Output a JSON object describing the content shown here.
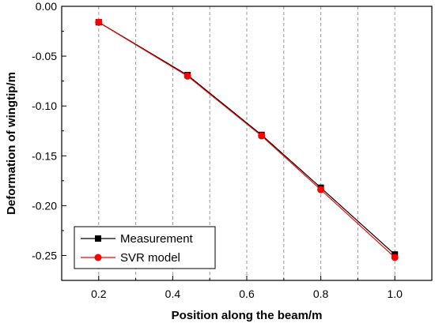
{
  "chart_data": {
    "type": "line",
    "title": "",
    "xlabel": "Position along the beam/m",
    "ylabel": "Deformation of wingtip/m",
    "xlim": [
      0.1,
      1.1
    ],
    "ylim": [
      -0.275,
      0.0
    ],
    "x_ticks": [
      0.2,
      0.4,
      0.6,
      0.8,
      1.0
    ],
    "x_tick_labels": [
      "0.2",
      "0.4",
      "0.6",
      "0.8",
      "1.0"
    ],
    "y_ticks": [
      0.0,
      -0.05,
      -0.1,
      -0.15,
      -0.2,
      -0.25
    ],
    "y_tick_labels": [
      "0.00",
      "-0.05",
      "-0.10",
      "-0.15",
      "-0.20",
      "-0.25"
    ],
    "grid": "vertical-dashed",
    "legend_position": "bottom-left",
    "series": [
      {
        "name": "Measurement",
        "color": "#000000",
        "marker": "square",
        "x": [
          0.2,
          0.44,
          0.64,
          0.8,
          1.0
        ],
        "y": [
          -0.016,
          -0.069,
          -0.129,
          -0.182,
          -0.249
        ]
      },
      {
        "name": "SVR model",
        "color": "#ff0000",
        "marker": "circle",
        "x": [
          0.2,
          0.44,
          0.64,
          0.8,
          1.0
        ],
        "y": [
          -0.016,
          -0.07,
          -0.13,
          -0.184,
          -0.252
        ]
      }
    ]
  }
}
